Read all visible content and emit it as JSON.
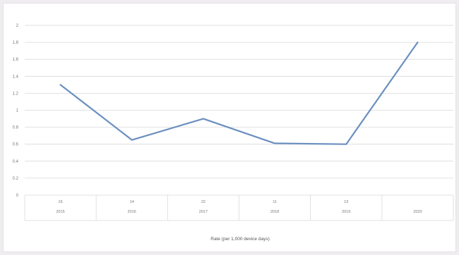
{
  "chart_data": {
    "type": "line",
    "xlabel": "Rate (per 1,000 device days)",
    "ylabel": "",
    "ylim": [
      0,
      2
    ],
    "yticks": [
      "0",
      "0.2",
      "0.4",
      "0.6",
      "0.8",
      "1",
      "1.2",
      "1.4",
      "1.6",
      "1.8",
      "2"
    ],
    "x_row1": [
      "16",
      "14",
      "22",
      "11",
      "13",
      ""
    ],
    "x_row2": [
      "2015",
      "2016",
      "2017",
      "2018",
      "2019",
      "2020"
    ],
    "series": [
      {
        "values": [
          1.3,
          0.65,
          0.9,
          0.61,
          0.6,
          1.8
        ]
      }
    ],
    "grid": true,
    "legend": "none"
  },
  "colors": {
    "line": "#6b8fc0",
    "grid": "#d9d9d9",
    "background": "#ffffff",
    "page": "#efedf0"
  }
}
